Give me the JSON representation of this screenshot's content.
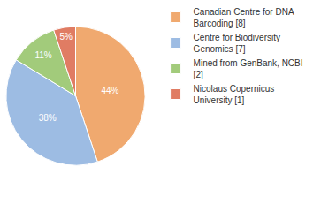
{
  "chart_data": {
    "type": "pie",
    "categories": [
      "Canadian Centre for DNA Barcoding [8]",
      "Centre for Biodiversity Genomics [7]",
      "Mined from GenBank, NCBI [2]",
      "Nicolaus Copernicus University [1]"
    ],
    "values": [
      44,
      38,
      11,
      5
    ],
    "value_labels": [
      "44%",
      "38%",
      "11%",
      "5%"
    ],
    "colors": [
      "#f0a96f",
      "#9dbce3",
      "#a2cb7b",
      "#e07c63"
    ],
    "data_labels": true,
    "legend": "right"
  }
}
